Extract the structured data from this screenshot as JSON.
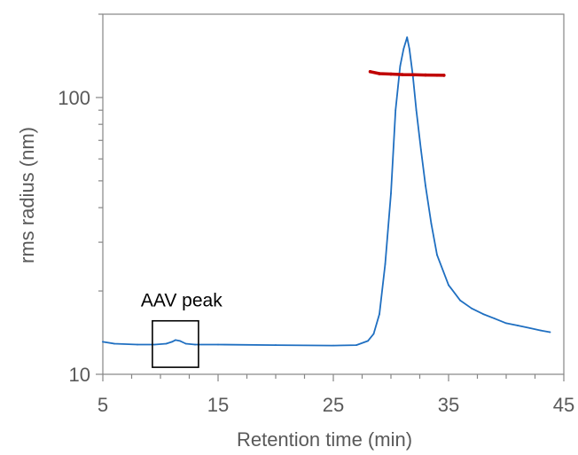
{
  "chart_data": {
    "type": "line",
    "title": "",
    "xlabel": "Retention time (min)",
    "ylabel": "rms radius (nm)",
    "xlim": [
      5,
      45
    ],
    "ylim": [
      10,
      200
    ],
    "yscale": "log",
    "x_ticks": [
      5,
      15,
      25,
      35,
      45
    ],
    "x_tick_labels": [
      "5",
      "15",
      "25",
      "35",
      "45"
    ],
    "y_ticks": [
      10,
      100
    ],
    "y_tick_labels": [
      "10",
      "100"
    ],
    "grid": false,
    "legend": "none",
    "series": [
      {
        "color": "#1f6fc1",
        "x": [
          5,
          6,
          8,
          9.5,
          10.5,
          11,
          11.3,
          11.7,
          12.2,
          13,
          15,
          20,
          25,
          27,
          28,
          28.5,
          29,
          29.5,
          30,
          30.4,
          30.8,
          31.1,
          31.4,
          31.6,
          31.9,
          32.2,
          32.6,
          33,
          33.5,
          34,
          35,
          36,
          37,
          38,
          39,
          40,
          41,
          42,
          43,
          43.8
        ],
        "y": [
          13.1,
          12.9,
          12.8,
          12.8,
          12.9,
          13.1,
          13.3,
          13.2,
          12.9,
          12.8,
          12.8,
          12.75,
          12.7,
          12.75,
          13.2,
          14,
          16.5,
          25,
          45,
          90,
          130,
          150,
          165,
          150,
          120,
          90,
          65,
          48,
          35,
          27,
          21,
          18.5,
          17.3,
          16.5,
          15.9,
          15.3,
          15,
          14.7,
          14.4,
          14.2
        ]
      },
      {
        "color": "#c00000",
        "x": [
          28.2,
          29,
          30,
          31,
          32,
          33,
          34,
          34.6
        ],
        "y": [
          124,
          122,
          121.5,
          121,
          120.8,
          120.6,
          120.4,
          120.3
        ]
      }
    ],
    "annotations": [
      {
        "text": "AAV peak",
        "x_range": [
          9.3,
          13.3
        ],
        "y_range": [
          10.6,
          15.6
        ]
      }
    ]
  },
  "colors": {
    "axis": "#868686",
    "text": "#595959",
    "box": "#000000"
  }
}
